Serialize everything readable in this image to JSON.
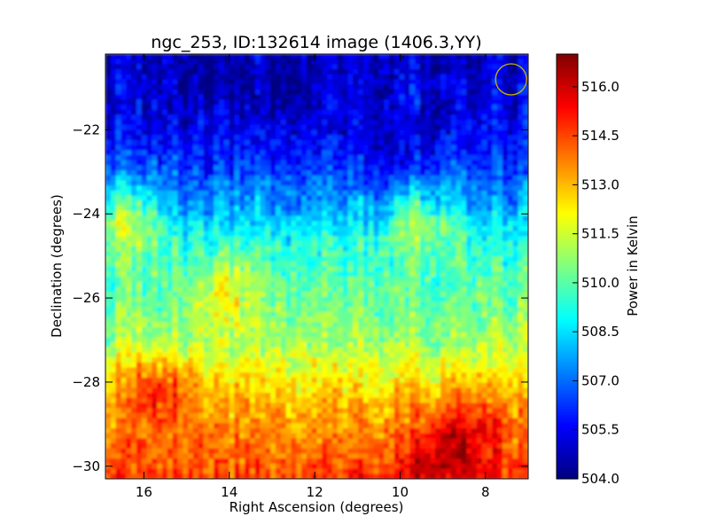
{
  "chart_data": {
    "type": "heatmap",
    "title": "ngc_253, ID:132614 image (1406.3,YY)",
    "xlabel": "Right Ascension (degrees)",
    "ylabel": "Declination (degrees)",
    "xlim": [
      16.9,
      7.0
    ],
    "ylim": [
      -30.3,
      -20.2
    ],
    "x_ticks": [
      16,
      14,
      12,
      10,
      8
    ],
    "x_tick_labels": [
      "16",
      "14",
      "12",
      "10",
      "8"
    ],
    "y_ticks": [
      -22,
      -24,
      -26,
      -28,
      -30
    ],
    "y_tick_labels": [
      "−22",
      "−24",
      "−26",
      "−28",
      "−30"
    ],
    "grid": false,
    "colormap": "jet",
    "colorbar": {
      "label": "Power in Kelvin",
      "range": [
        504.0,
        517.0
      ],
      "ticks": [
        504.0,
        505.5,
        507.0,
        508.5,
        510.0,
        511.5,
        513.0,
        514.5,
        516.0
      ],
      "tick_labels": [
        "504.0",
        "505.5",
        "507.0",
        "508.5",
        "510.0",
        "511.5",
        "513.0",
        "514.5",
        "516.0"
      ]
    },
    "dec_profile": {
      "dec": [
        -20.2,
        -21.0,
        -22.0,
        -23.0,
        -24.0,
        -24.5,
        -25.0,
        -26.0,
        -27.0,
        -27.5,
        -28.0,
        -28.5,
        -29.0,
        -29.5,
        -30.0,
        -30.3
      ],
      "power": [
        505.0,
        505.2,
        505.6,
        506.5,
        508.0,
        509.0,
        509.6,
        510.2,
        510.9,
        511.7,
        512.4,
        513.0,
        513.5,
        514.0,
        514.5,
        514.8
      ]
    },
    "features": [
      {
        "ra": 15.7,
        "dec": -28.4,
        "power": 515.0
      },
      {
        "ra": 9.0,
        "dec": -30.0,
        "power": 516.3
      },
      {
        "ra": 8.3,
        "dec": -29.2,
        "power": 515.2
      },
      {
        "ra": 14.0,
        "dec": -26.1,
        "power": 511.8
      },
      {
        "ra": 16.5,
        "dec": -24.3,
        "power": 511.3
      },
      {
        "ra": 9.5,
        "dec": -24.4,
        "power": 510.8
      },
      {
        "ra": 12.8,
        "dec": -21.0,
        "power": 504.4
      },
      {
        "ra": 14.5,
        "dec": -20.8,
        "power": 504.5
      },
      {
        "ra": 10.2,
        "dec": -22.3,
        "power": 505.0
      }
    ],
    "overlay": {
      "shape": "circle",
      "ra": 7.4,
      "dec": -20.8,
      "radius_deg": 0.37,
      "color": "#c8b400"
    }
  }
}
